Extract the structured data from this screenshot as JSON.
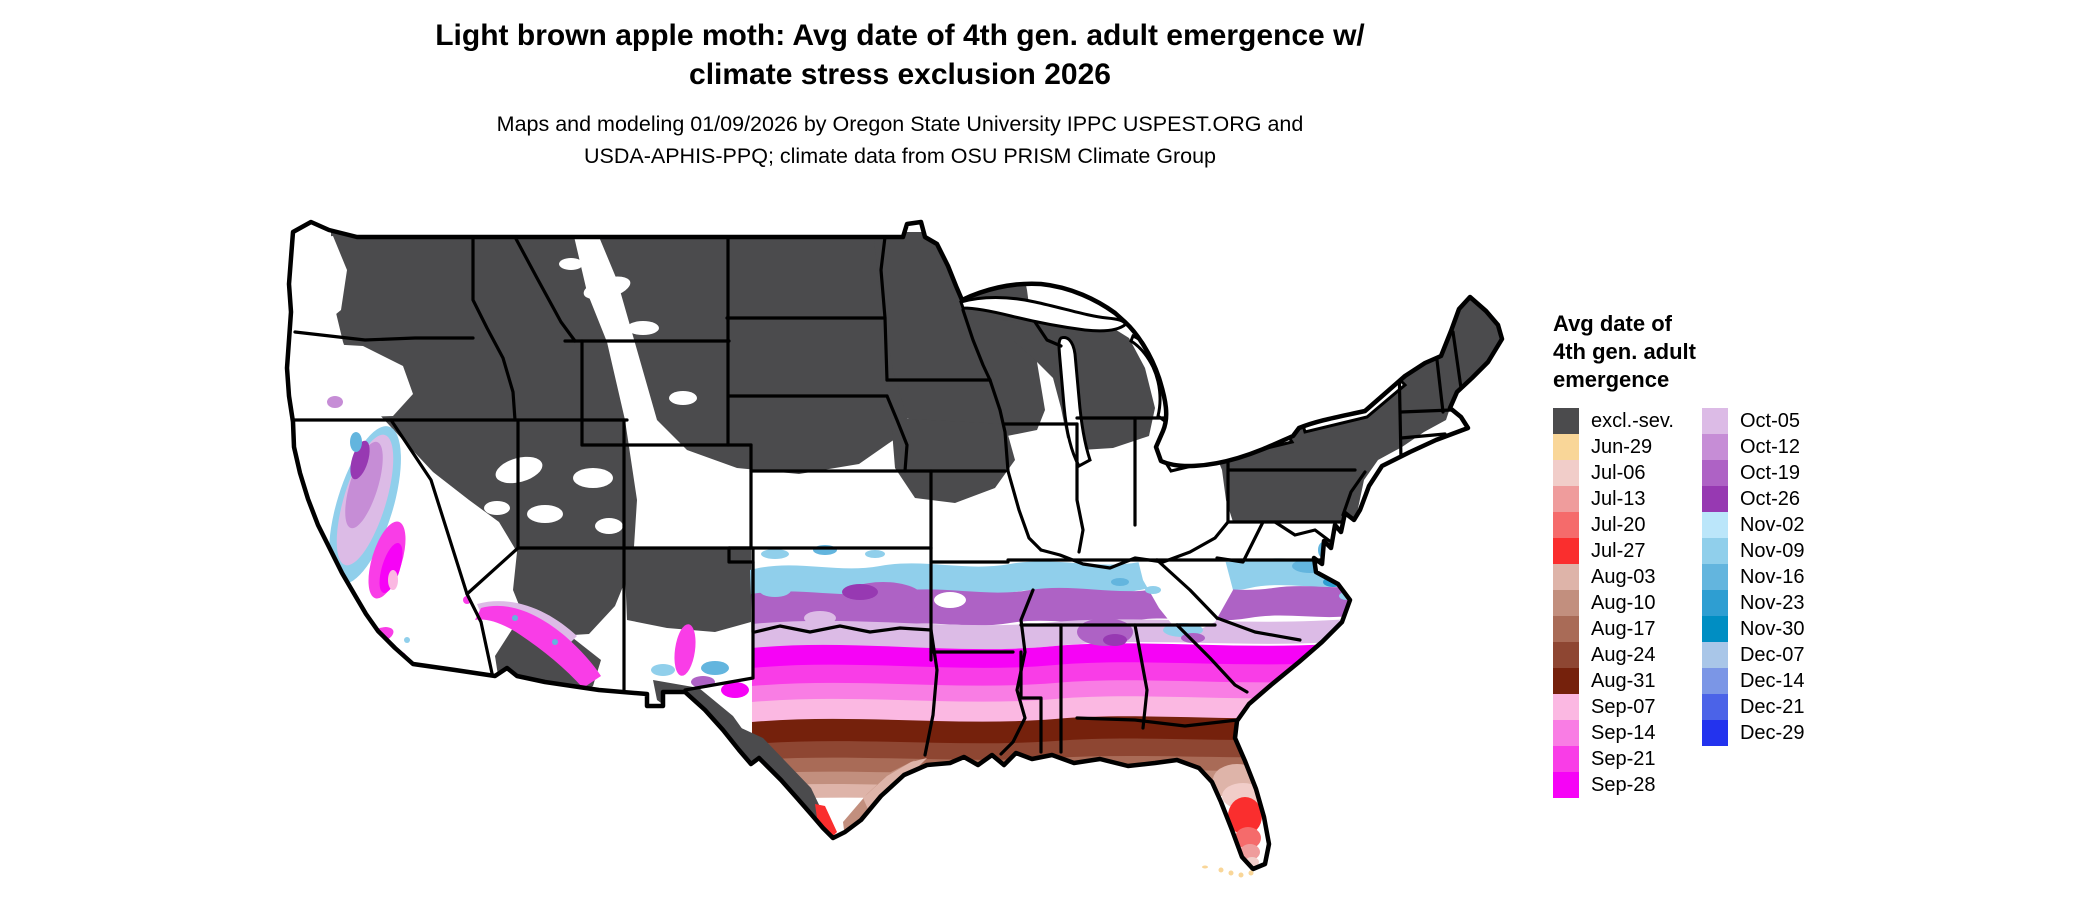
{
  "title": {
    "line1": "Light brown apple moth: Avg date of 4th gen. adult emergence w/",
    "line2": "climate stress exclusion 2026"
  },
  "subtitle": {
    "line1": "Maps and modeling 01/09/2026 by Oregon State University IPPC USPEST.ORG and",
    "line2": "USDA-APHIS-PPQ; climate data from OSU PRISM Climate Group"
  },
  "legend": {
    "title_lines": [
      "Avg date of",
      "4th gen. adult",
      "emergence"
    ],
    "columns": [
      [
        {
          "label": "excl.-sev.",
          "color": "#4B4B4D"
        },
        {
          "label": "Jun-29",
          "color": "#F9D698"
        },
        {
          "label": "Jul-06",
          "color": "#F1CDC9"
        },
        {
          "label": "Jul-13",
          "color": "#EF9C9C"
        },
        {
          "label": "Jul-20",
          "color": "#F56B6B"
        },
        {
          "label": "Jul-27",
          "color": "#FA2E2E"
        },
        {
          "label": "Aug-03",
          "color": "#DEB4A9"
        },
        {
          "label": "Aug-10",
          "color": "#C28F7E"
        },
        {
          "label": "Aug-17",
          "color": "#A96B57"
        },
        {
          "label": "Aug-24",
          "color": "#8E4632"
        },
        {
          "label": "Aug-31",
          "color": "#75210C"
        },
        {
          "label": "Sep-07",
          "color": "#FBB8E2"
        },
        {
          "label": "Sep-14",
          "color": "#F97DE4"
        },
        {
          "label": "Sep-21",
          "color": "#F93DE7"
        },
        {
          "label": "Sep-28",
          "color": "#F603F6"
        }
      ],
      [
        {
          "label": "Oct-05",
          "color": "#DCBBE6"
        },
        {
          "label": "Oct-12",
          "color": "#C68DD6"
        },
        {
          "label": "Oct-19",
          "color": "#AE62C5"
        },
        {
          "label": "Oct-26",
          "color": "#9739B2"
        },
        {
          "label": "Nov-02",
          "color": "#BBE6FA"
        },
        {
          "label": "Nov-09",
          "color": "#90CFEB"
        },
        {
          "label": "Nov-16",
          "color": "#63B5DE"
        },
        {
          "label": "Nov-23",
          "color": "#2E9ED2"
        },
        {
          "label": "Nov-30",
          "color": "#008EC3"
        },
        {
          "label": "Dec-07",
          "color": "#A9C6E8"
        },
        {
          "label": "Dec-14",
          "color": "#7B96E6"
        },
        {
          "label": "Dec-21",
          "color": "#4B63E8"
        },
        {
          "label": "Dec-29",
          "color": "#2333EE"
        }
      ]
    ]
  },
  "map": {
    "kind": "raster choropleth of conterminous United States",
    "palette": {
      "excluded": "#4B4B4D",
      "jun29": "#F9D698",
      "jul06": "#F1CDC9",
      "jul13": "#EF9C9C",
      "jul20": "#F56B6B",
      "jul27": "#FA2E2E",
      "aug03": "#DEB4A9",
      "aug10": "#C28F7E",
      "aug17": "#A96B57",
      "aug24": "#8E4632",
      "aug31": "#75210C",
      "sep07": "#FBB8E2",
      "sep14": "#F97DE4",
      "sep21": "#F93DE7",
      "sep28": "#F603F6",
      "oct05": "#DCBBE6",
      "oct12": "#C68DD6",
      "oct19": "#AE62C5",
      "oct26": "#9739B2",
      "nov02": "#BBE6FA",
      "nov09": "#90CFEB",
      "nov16": "#63B5DE",
      "nov23": "#2E9ED2",
      "nov30": "#008EC3",
      "border": "#000000"
    },
    "regions_summary": [
      {
        "area": "Northern tier and interior West (MT, ND, SD, NE, MN, WI, MI, ID, NV, UT, CO, NY, PA, New England)",
        "class": "excl.-sev."
      },
      {
        "area": "Mid-latitude belt (KS, MO, OH valley, VA, western valleys)",
        "class": "white (no date shown)"
      },
      {
        "area": "Fringe from S Kansas through Tennessee to VA/NC coast",
        "class": "Nov (blues)"
      },
      {
        "area": "N Oklahoma, N Arkansas, mid-South uplands",
        "class": "Oct (purples)"
      },
      {
        "area": "OK, AR, N MS/AL/GA, Carolinas coastal plain",
        "class": "Sep (magentas/pinks)"
      },
      {
        "area": "Gulf belt from central Texas to south Georgia / north Florida",
        "class": "Aug (browns)"
      },
      {
        "area": "Central Florida and lower Texas coast",
        "class": "Jul (reds)"
      },
      {
        "area": "Florida Keys",
        "class": "Jun-29"
      },
      {
        "area": "California Central Valley ring",
        "class": "Sep–Nov (magenta core, purple/blue ring)"
      }
    ]
  },
  "chart_data": {
    "type": "choropleth-map",
    "title": "Light brown apple moth: Avg date of 4th gen. adult emergence w/ climate stress exclusion 2026",
    "legend_title": "Avg date of 4th gen. adult emergence",
    "categories": [
      "excl.-sev.",
      "Jun-29",
      "Jul-06",
      "Jul-13",
      "Jul-20",
      "Jul-27",
      "Aug-03",
      "Aug-10",
      "Aug-17",
      "Aug-24",
      "Aug-31",
      "Sep-07",
      "Sep-14",
      "Sep-21",
      "Sep-28",
      "Oct-05",
      "Oct-12",
      "Oct-19",
      "Oct-26",
      "Nov-02",
      "Nov-09",
      "Nov-16",
      "Nov-23",
      "Nov-30",
      "Dec-07",
      "Dec-14",
      "Dec-21",
      "Dec-29"
    ],
    "colors": [
      "#4B4B4D",
      "#F9D698",
      "#F1CDC9",
      "#EF9C9C",
      "#F56B6B",
      "#FA2E2E",
      "#DEB4A9",
      "#C28F7E",
      "#A96B57",
      "#8E4632",
      "#75210C",
      "#FBB8E2",
      "#F97DE4",
      "#F93DE7",
      "#F603F6",
      "#DCBBE6",
      "#C68DD6",
      "#AE62C5",
      "#9739B2",
      "#BBE6FA",
      "#90CFEB",
      "#63B5DE",
      "#2E9ED2",
      "#008EC3",
      "#A9C6E8",
      "#7B96E6",
      "#4B63E8",
      "#2333EE"
    ],
    "legend_position": "right"
  }
}
